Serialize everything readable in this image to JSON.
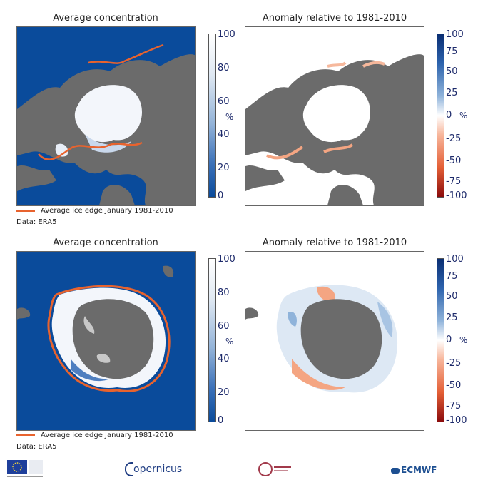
{
  "panels": {
    "arctic_conc": {
      "title": "Average concentration"
    },
    "arctic_anom": {
      "title": "Anomaly relative to 1981-2010"
    },
    "antarctic_conc": {
      "title": "Average concentration"
    },
    "antarctic_anom": {
      "title": "Anomaly relative to 1981-2010"
    }
  },
  "colorbars": {
    "concentration": {
      "ticks": [
        "100",
        "80",
        "60",
        "40",
        "20",
        "0"
      ],
      "unit": "%"
    },
    "anomaly": {
      "ticks": [
        "100",
        "75",
        "50",
        "25",
        "0",
        "-25",
        "-50",
        "-75",
        "-100"
      ],
      "unit": "%"
    }
  },
  "legend": {
    "label": "Average ice edge January 1981-2010",
    "color": "#e8632e"
  },
  "source": "Data: ERA5",
  "logos": {
    "copernicus": "opernicus",
    "ecmwf": "ECMWF"
  },
  "colors": {
    "ocean": "#0a4b9b",
    "land": "#6b6b6b",
    "ice": "#ffffff",
    "edge": "#e8632e"
  }
}
